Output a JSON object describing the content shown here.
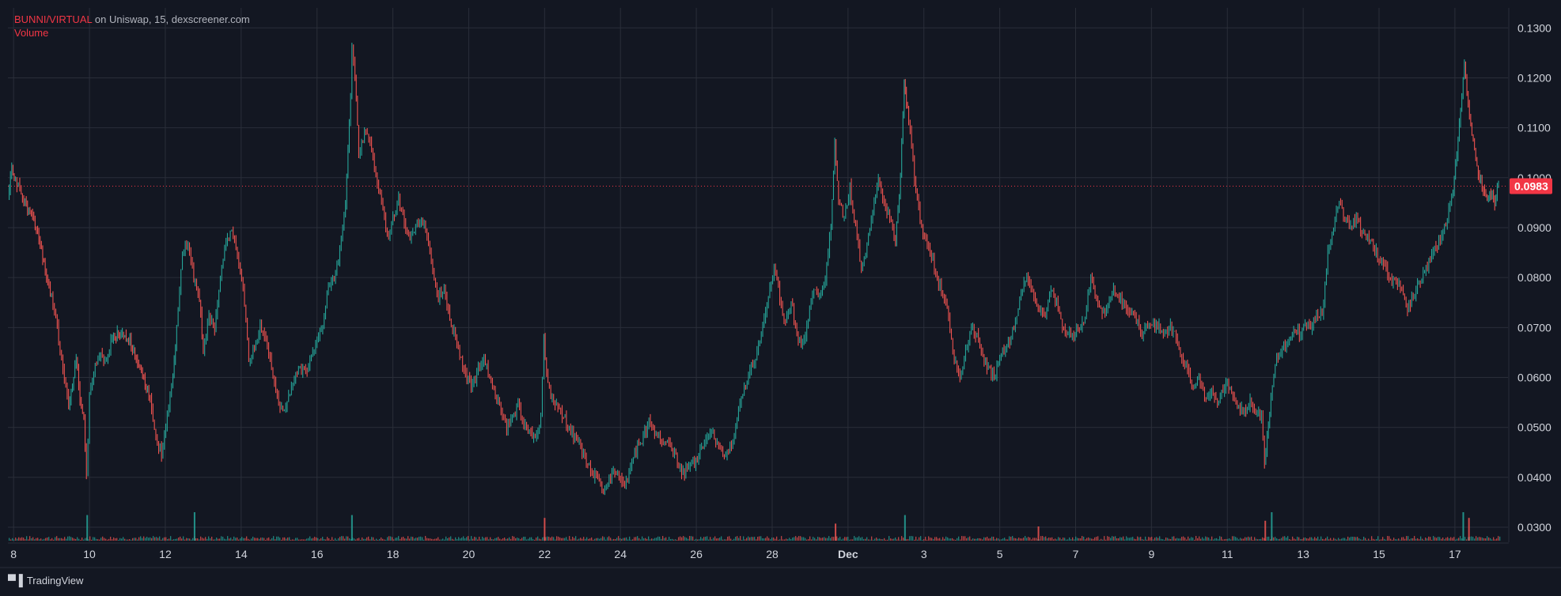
{
  "legend": {
    "pair": "BUNNI/VIRTUAL",
    "exchange": "on Uniswap",
    "interval": "15",
    "source": "dexscreener.com",
    "volume_label": "Volume"
  },
  "watermark": {
    "brand": "TradingView"
  },
  "current_price": {
    "label": "0.0983",
    "value": 0.0983
  },
  "colors": {
    "background": "#131722",
    "grid": "#2a2e39",
    "up": "#26a69a",
    "down": "#ef5350",
    "price_tag": "#f23645",
    "axis_text": "#d1d4dc"
  },
  "chart_data": {
    "type": "line",
    "y_scale": "linear",
    "ylim": [
      0.027,
      0.134
    ],
    "y_ticks": [
      "0.1300",
      "0.1200",
      "0.1100",
      "0.1000",
      "0.0900",
      "0.0800",
      "0.0700",
      "0.0600",
      "0.0500",
      "0.0400",
      "0.0300"
    ],
    "x_ticks": [
      "8",
      "10",
      "12",
      "14",
      "16",
      "18",
      "20",
      "22",
      "24",
      "26",
      "28",
      "Dec",
      "3",
      "5",
      "7",
      "9",
      "11",
      "13",
      "15",
      "17"
    ],
    "x_tick_days": [
      8,
      10,
      12,
      14,
      16,
      18,
      20,
      22,
      24,
      26,
      28,
      30,
      32,
      34,
      36,
      38,
      40,
      42,
      44,
      46
    ],
    "xlim": [
      7.85,
      47.4
    ],
    "grid": true,
    "series": [
      {
        "name": "",
        "points": [
          [
            7.85,
            0.0965
          ],
          [
            7.95,
            0.102
          ],
          [
            8.05,
            0.1
          ],
          [
            8.2,
            0.096
          ],
          [
            8.4,
            0.094
          ],
          [
            8.6,
            0.09
          ],
          [
            8.8,
            0.083
          ],
          [
            9.0,
            0.076
          ],
          [
            9.15,
            0.07
          ],
          [
            9.3,
            0.062
          ],
          [
            9.45,
            0.054
          ],
          [
            9.55,
            0.058
          ],
          [
            9.65,
            0.064
          ],
          [
            9.75,
            0.056
          ],
          [
            9.85,
            0.052
          ],
          [
            9.92,
            0.04
          ],
          [
            10.0,
            0.056
          ],
          [
            10.15,
            0.062
          ],
          [
            10.3,
            0.065
          ],
          [
            10.45,
            0.063
          ],
          [
            10.6,
            0.068
          ],
          [
            10.8,
            0.069
          ],
          [
            11.0,
            0.068
          ],
          [
            11.2,
            0.065
          ],
          [
            11.4,
            0.06
          ],
          [
            11.6,
            0.056
          ],
          [
            11.75,
            0.048
          ],
          [
            11.9,
            0.045
          ],
          [
            12.05,
            0.052
          ],
          [
            12.2,
            0.06
          ],
          [
            12.3,
            0.07
          ],
          [
            12.45,
            0.085
          ],
          [
            12.6,
            0.087
          ],
          [
            12.75,
            0.08
          ],
          [
            12.9,
            0.076
          ],
          [
            13.0,
            0.065
          ],
          [
            13.15,
            0.072
          ],
          [
            13.3,
            0.07
          ],
          [
            13.45,
            0.081
          ],
          [
            13.6,
            0.086
          ],
          [
            13.75,
            0.09
          ],
          [
            13.9,
            0.084
          ],
          [
            14.05,
            0.078
          ],
          [
            14.2,
            0.064
          ],
          [
            14.35,
            0.066
          ],
          [
            14.5,
            0.07
          ],
          [
            14.65,
            0.068
          ],
          [
            14.8,
            0.062
          ],
          [
            14.95,
            0.056
          ],
          [
            15.1,
            0.053
          ],
          [
            15.25,
            0.056
          ],
          [
            15.4,
            0.06
          ],
          [
            15.55,
            0.062
          ],
          [
            15.7,
            0.061
          ],
          [
            15.85,
            0.064
          ],
          [
            16.0,
            0.068
          ],
          [
            16.15,
            0.07
          ],
          [
            16.3,
            0.078
          ],
          [
            16.45,
            0.08
          ],
          [
            16.6,
            0.085
          ],
          [
            16.75,
            0.095
          ],
          [
            16.85,
            0.11
          ],
          [
            16.92,
            0.125
          ],
          [
            17.0,
            0.12
          ],
          [
            17.1,
            0.105
          ],
          [
            17.25,
            0.109
          ],
          [
            17.4,
            0.108
          ],
          [
            17.55,
            0.1
          ],
          [
            17.7,
            0.095
          ],
          [
            17.85,
            0.088
          ],
          [
            18.0,
            0.092
          ],
          [
            18.15,
            0.096
          ],
          [
            18.3,
            0.091
          ],
          [
            18.45,
            0.088
          ],
          [
            18.6,
            0.09
          ],
          [
            18.75,
            0.092
          ],
          [
            18.9,
            0.088
          ],
          [
            19.05,
            0.082
          ],
          [
            19.2,
            0.076
          ],
          [
            19.35,
            0.078
          ],
          [
            19.5,
            0.072
          ],
          [
            19.65,
            0.068
          ],
          [
            19.8,
            0.064
          ],
          [
            19.95,
            0.06
          ],
          [
            20.1,
            0.058
          ],
          [
            20.25,
            0.062
          ],
          [
            20.4,
            0.064
          ],
          [
            20.55,
            0.06
          ],
          [
            20.7,
            0.056
          ],
          [
            20.85,
            0.054
          ],
          [
            21.0,
            0.05
          ],
          [
            21.15,
            0.052
          ],
          [
            21.3,
            0.054
          ],
          [
            21.45,
            0.051
          ],
          [
            21.6,
            0.049
          ],
          [
            21.75,
            0.048
          ],
          [
            21.9,
            0.052
          ],
          [
            21.98,
            0.068
          ],
          [
            22.05,
            0.06
          ],
          [
            22.2,
            0.056
          ],
          [
            22.35,
            0.054
          ],
          [
            22.5,
            0.052
          ],
          [
            22.65,
            0.05
          ],
          [
            22.8,
            0.048
          ],
          [
            22.95,
            0.046
          ],
          [
            23.1,
            0.043
          ],
          [
            23.25,
            0.041
          ],
          [
            23.4,
            0.039
          ],
          [
            23.55,
            0.037
          ],
          [
            23.7,
            0.039
          ],
          [
            23.85,
            0.041
          ],
          [
            24.0,
            0.04
          ],
          [
            24.15,
            0.039
          ],
          [
            24.3,
            0.043
          ],
          [
            24.45,
            0.046
          ],
          [
            24.6,
            0.048
          ],
          [
            24.75,
            0.051
          ],
          [
            24.9,
            0.049
          ],
          [
            25.05,
            0.048
          ],
          [
            25.2,
            0.047
          ],
          [
            25.35,
            0.046
          ],
          [
            25.5,
            0.043
          ],
          [
            25.65,
            0.041
          ],
          [
            25.8,
            0.042
          ],
          [
            25.95,
            0.043
          ],
          [
            26.1,
            0.045
          ],
          [
            26.25,
            0.047
          ],
          [
            26.4,
            0.049
          ],
          [
            26.55,
            0.047
          ],
          [
            26.7,
            0.044
          ],
          [
            26.85,
            0.045
          ],
          [
            27.0,
            0.048
          ],
          [
            27.15,
            0.055
          ],
          [
            27.3,
            0.058
          ],
          [
            27.45,
            0.062
          ],
          [
            27.6,
            0.065
          ],
          [
            27.75,
            0.07
          ],
          [
            27.9,
            0.076
          ],
          [
            28.05,
            0.082
          ],
          [
            28.2,
            0.076
          ],
          [
            28.35,
            0.07
          ],
          [
            28.5,
            0.076
          ],
          [
            28.65,
            0.068
          ],
          [
            28.8,
            0.066
          ],
          [
            28.95,
            0.072
          ],
          [
            29.1,
            0.078
          ],
          [
            29.25,
            0.076
          ],
          [
            29.4,
            0.08
          ],
          [
            29.55,
            0.09
          ],
          [
            29.65,
            0.107
          ],
          [
            29.75,
            0.096
          ],
          [
            29.9,
            0.092
          ],
          [
            30.05,
            0.098
          ],
          [
            30.2,
            0.09
          ],
          [
            30.35,
            0.082
          ],
          [
            30.5,
            0.086
          ],
          [
            30.65,
            0.093
          ],
          [
            30.8,
            0.099
          ],
          [
            30.95,
            0.095
          ],
          [
            31.1,
            0.092
          ],
          [
            31.25,
            0.088
          ],
          [
            31.35,
            0.096
          ],
          [
            31.48,
            0.119
          ],
          [
            31.6,
            0.112
          ],
          [
            31.75,
            0.1
          ],
          [
            31.9,
            0.092
          ],
          [
            32.05,
            0.087
          ],
          [
            32.2,
            0.085
          ],
          [
            32.35,
            0.08
          ],
          [
            32.5,
            0.077
          ],
          [
            32.65,
            0.072
          ],
          [
            32.8,
            0.064
          ],
          [
            32.95,
            0.06
          ],
          [
            33.1,
            0.065
          ],
          [
            33.25,
            0.07
          ],
          [
            33.4,
            0.068
          ],
          [
            33.55,
            0.064
          ],
          [
            33.7,
            0.062
          ],
          [
            33.85,
            0.06
          ],
          [
            34.0,
            0.064
          ],
          [
            34.15,
            0.066
          ],
          [
            34.3,
            0.068
          ],
          [
            34.45,
            0.072
          ],
          [
            34.6,
            0.078
          ],
          [
            34.75,
            0.08
          ],
          [
            34.9,
            0.076
          ],
          [
            35.05,
            0.074
          ],
          [
            35.2,
            0.072
          ],
          [
            35.35,
            0.078
          ],
          [
            35.5,
            0.075
          ],
          [
            35.65,
            0.07
          ],
          [
            35.8,
            0.069
          ],
          [
            35.95,
            0.068
          ],
          [
            36.1,
            0.07
          ],
          [
            36.25,
            0.072
          ],
          [
            36.4,
            0.08
          ],
          [
            36.55,
            0.076
          ],
          [
            36.7,
            0.072
          ],
          [
            36.85,
            0.075
          ],
          [
            37.0,
            0.078
          ],
          [
            37.15,
            0.076
          ],
          [
            37.3,
            0.074
          ],
          [
            37.45,
            0.073
          ],
          [
            37.6,
            0.072
          ],
          [
            37.75,
            0.069
          ],
          [
            37.9,
            0.07
          ],
          [
            38.05,
            0.071
          ],
          [
            38.2,
            0.07
          ],
          [
            38.35,
            0.069
          ],
          [
            38.5,
            0.07
          ],
          [
            38.65,
            0.068
          ],
          [
            38.8,
            0.064
          ],
          [
            38.95,
            0.061
          ],
          [
            39.1,
            0.058
          ],
          [
            39.25,
            0.06
          ],
          [
            39.4,
            0.056
          ],
          [
            39.55,
            0.057
          ],
          [
            39.7,
            0.055
          ],
          [
            39.85,
            0.057
          ],
          [
            40.0,
            0.059
          ],
          [
            40.15,
            0.056
          ],
          [
            40.3,
            0.054
          ],
          [
            40.45,
            0.053
          ],
          [
            40.6,
            0.055
          ],
          [
            40.75,
            0.053
          ],
          [
            40.9,
            0.052
          ],
          [
            40.98,
            0.042
          ],
          [
            41.05,
            0.048
          ],
          [
            41.15,
            0.056
          ],
          [
            41.3,
            0.064
          ],
          [
            41.45,
            0.066
          ],
          [
            41.6,
            0.067
          ],
          [
            41.75,
            0.07
          ],
          [
            41.9,
            0.069
          ],
          [
            42.05,
            0.071
          ],
          [
            42.2,
            0.07
          ],
          [
            42.35,
            0.073
          ],
          [
            42.5,
            0.072
          ],
          [
            42.65,
            0.085
          ],
          [
            42.8,
            0.09
          ],
          [
            42.95,
            0.096
          ],
          [
            43.1,
            0.092
          ],
          [
            43.25,
            0.09
          ],
          [
            43.4,
            0.092
          ],
          [
            43.55,
            0.089
          ],
          [
            43.7,
            0.088
          ],
          [
            43.85,
            0.086
          ],
          [
            44.0,
            0.084
          ],
          [
            44.15,
            0.082
          ],
          [
            44.3,
            0.08
          ],
          [
            44.45,
            0.079
          ],
          [
            44.6,
            0.078
          ],
          [
            44.75,
            0.074
          ],
          [
            44.9,
            0.076
          ],
          [
            45.05,
            0.079
          ],
          [
            45.2,
            0.081
          ],
          [
            45.35,
            0.084
          ],
          [
            45.5,
            0.086
          ],
          [
            45.65,
            0.088
          ],
          [
            45.8,
            0.092
          ],
          [
            45.95,
            0.098
          ],
          [
            46.05,
            0.105
          ],
          [
            46.15,
            0.114
          ],
          [
            46.25,
            0.123
          ],
          [
            46.35,
            0.115
          ],
          [
            46.45,
            0.108
          ],
          [
            46.55,
            0.104
          ],
          [
            46.65,
            0.1
          ],
          [
            46.75,
            0.098
          ],
          [
            46.85,
            0.096
          ],
          [
            46.95,
            0.097
          ],
          [
            47.05,
            0.095
          ],
          [
            47.15,
            0.0983
          ]
        ]
      }
    ],
    "volume_spikes": [
      [
        9.92,
        0.9
      ],
      [
        12.75,
        1.0
      ],
      [
        16.9,
        0.9
      ],
      [
        21.98,
        0.8
      ],
      [
        29.65,
        0.6
      ],
      [
        31.48,
        0.9
      ],
      [
        35.0,
        0.5
      ],
      [
        40.98,
        0.7
      ],
      [
        41.15,
        1.0
      ],
      [
        46.2,
        1.0
      ],
      [
        46.35,
        0.8
      ]
    ]
  }
}
